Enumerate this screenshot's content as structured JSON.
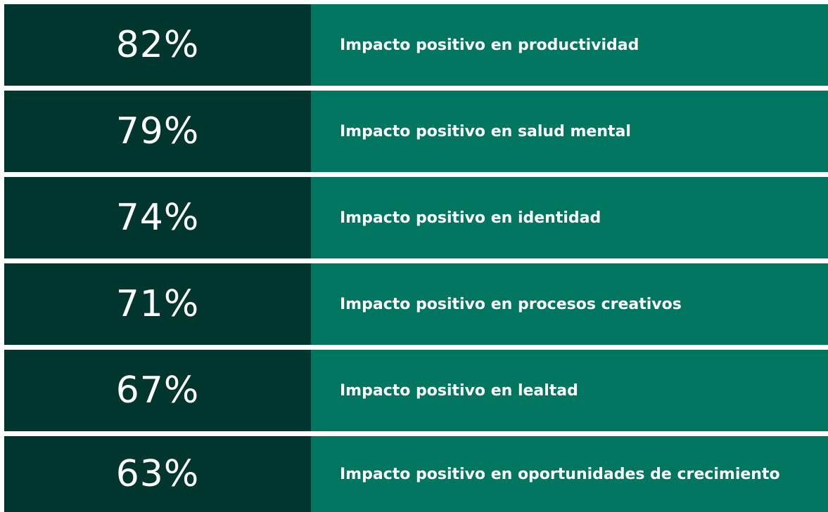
{
  "rows": [
    {
      "value": "82%",
      "label": "Impacto positivo en productividad"
    },
    {
      "value": "79%",
      "label": "Impacto positivo en salud mental"
    },
    {
      "value": "74%",
      "label": "Impacto positivo en identidad"
    },
    {
      "value": "71%",
      "label": "Impacto positivo en procesos creativos"
    },
    {
      "value": "67%",
      "label": "Impacto positivo en lealtad"
    },
    {
      "value": "63%",
      "label": "Impacto positivo en oportunidades de crecimiento"
    }
  ]
}
